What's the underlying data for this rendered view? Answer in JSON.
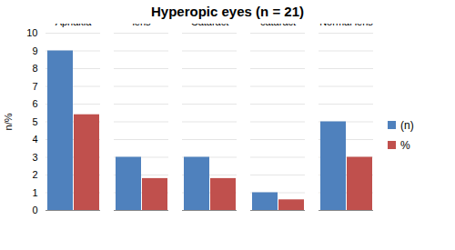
{
  "chart_data": {
    "type": "bar",
    "title": "Hyperopic eyes (n = 21)",
    "y_label": "n/%",
    "categories": [
      "Aphakia",
      "Subluxated lens",
      "Cataract",
      "Subluxated cataract",
      "Normal lens"
    ],
    "series": [
      {
        "name": "(n)",
        "color": "#4f81bd",
        "values": [
          9,
          3,
          3,
          1,
          5
        ]
      },
      {
        "name": "%",
        "color": "#c0504d",
        "values": [
          5.4,
          1.8,
          1.8,
          0.6,
          3
        ]
      }
    ],
    "ylim": [
      0,
      10
    ],
    "yticks": [
      0,
      1,
      2,
      3,
      4,
      5,
      6,
      7,
      8,
      9,
      10
    ],
    "grid": true,
    "legend": "right"
  }
}
